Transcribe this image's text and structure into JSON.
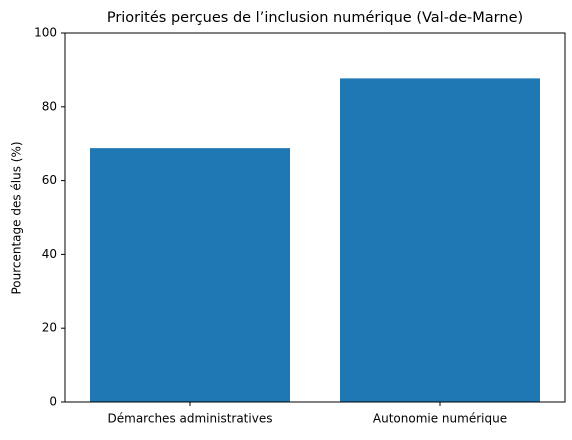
{
  "chart_data": {
    "type": "bar",
    "title": "Priorités perçues de l’inclusion numérique (Val-de-Marne)",
    "ylabel": "Pourcentage des élus (%)",
    "categories": [
      "Démarches administratives",
      "Autonomie numérique"
    ],
    "values": [
      68.8,
      87.7
    ],
    "color": "#1f77b4",
    "ylim": [
      0,
      100
    ],
    "yticks": [
      0,
      20,
      40,
      60,
      80,
      100
    ],
    "grid": false
  }
}
